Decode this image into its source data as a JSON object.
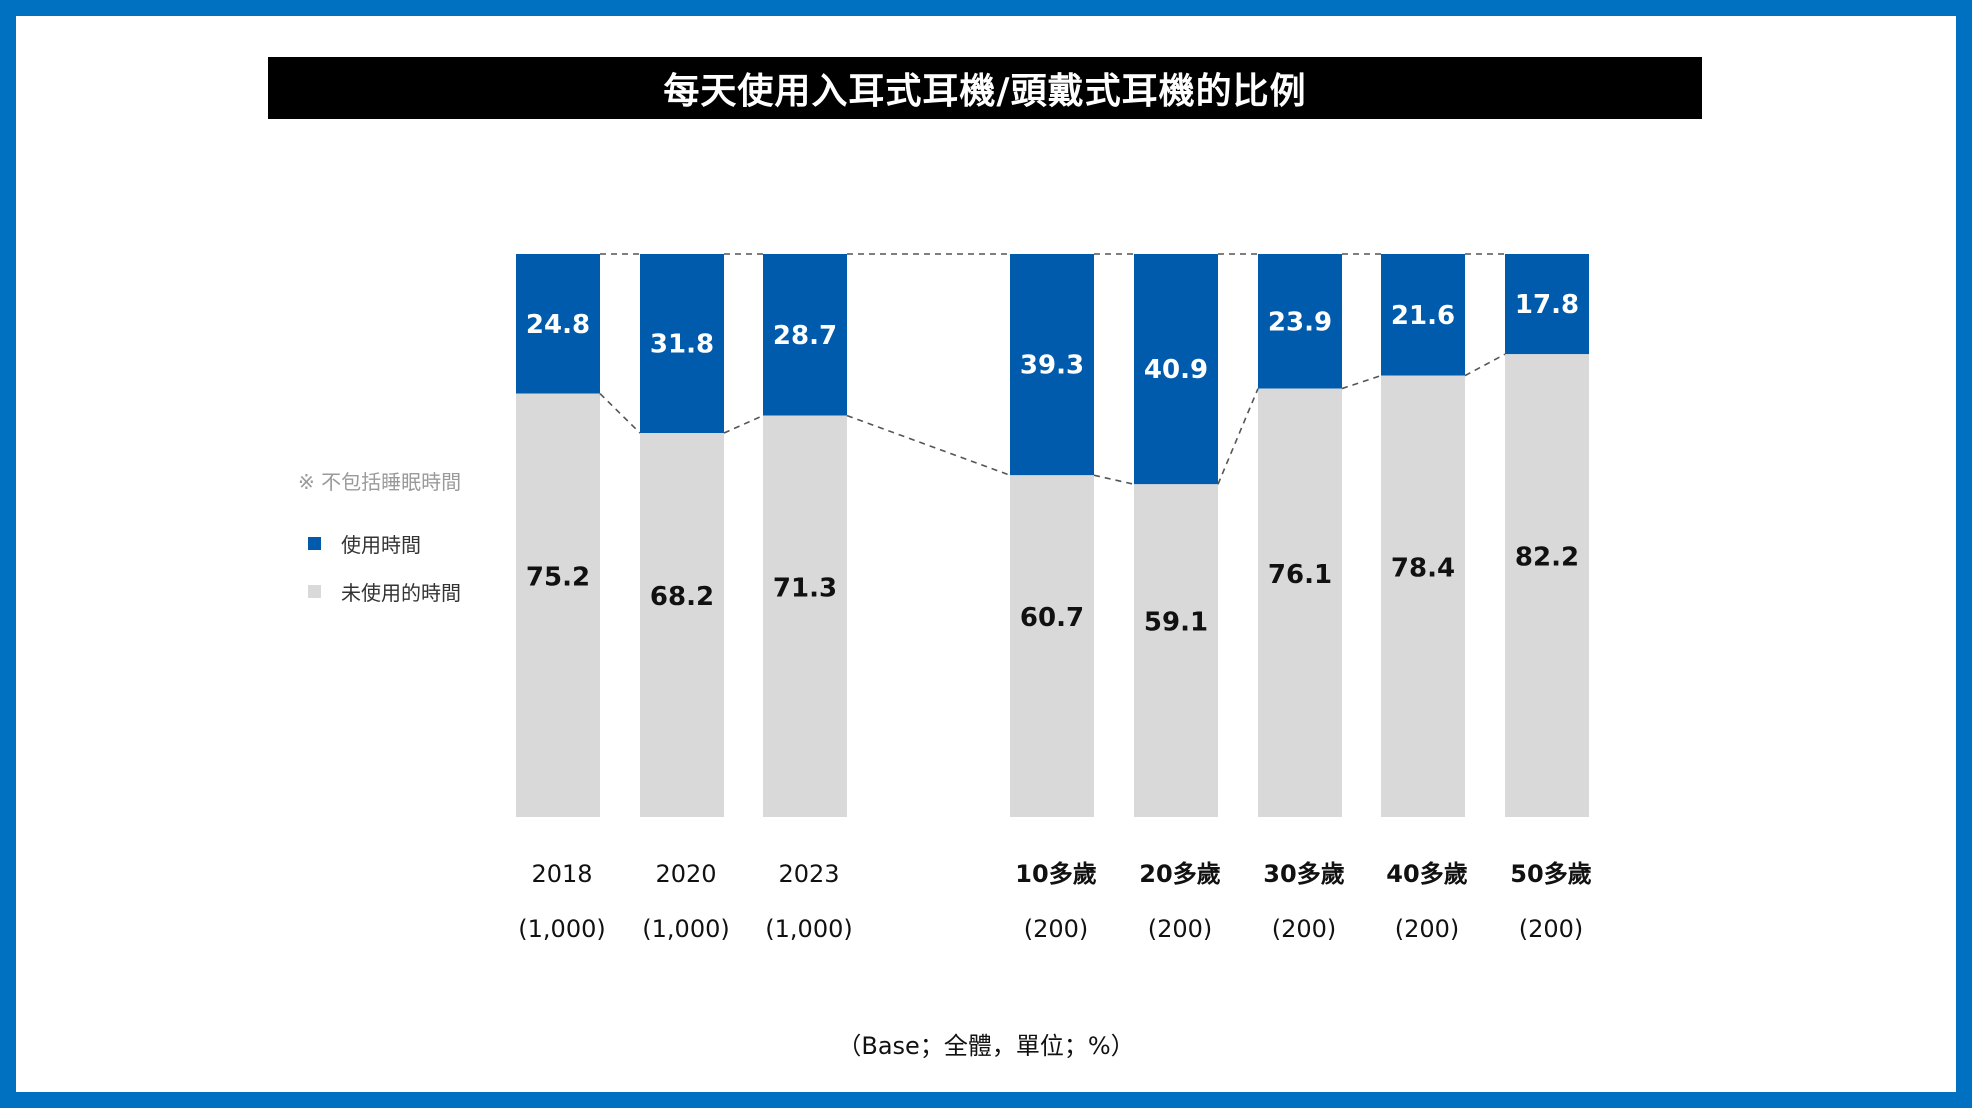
{
  "title": "每天使用入耳式耳機/頭戴式耳機的比例",
  "note": "※ 不包括睡眠時間",
  "legend": {
    "used": "使用時間",
    "unused": "未使用的時間"
  },
  "base_note": "（Base；全體，單位；%）",
  "colors": {
    "used": "#005bac",
    "unused": "#d9d9d9",
    "frame": "#0070c0"
  },
  "chart_data": {
    "type": "bar",
    "stacked": true,
    "percent_stacked": true,
    "ylim": [
      0,
      100
    ],
    "categories": [
      "2018",
      "2020",
      "2023",
      "10多歲",
      "20多歲",
      "30多歲",
      "40多歲",
      "50多歲"
    ],
    "sample_sizes": [
      "(1,000)",
      "(1,000)",
      "(1,000)",
      "(200)",
      "(200)",
      "(200)",
      "(200)",
      "(200)"
    ],
    "series": [
      {
        "name": "使用時間",
        "values": [
          24.8,
          31.8,
          28.7,
          39.3,
          40.9,
          23.9,
          21.6,
          17.8
        ]
      },
      {
        "name": "未使用的時間",
        "values": [
          75.2,
          68.2,
          71.3,
          60.7,
          59.1,
          76.1,
          78.4,
          82.2
        ]
      }
    ],
    "value_labels": {
      "used": [
        "24.8",
        "31.8",
        "28.7",
        "39.3",
        "40.9",
        "23.9",
        "21.6",
        "17.8"
      ],
      "unused": [
        "75.2",
        "68.2",
        "71.3",
        "60.7",
        "59.1",
        "76.1",
        "78.4",
        "82.2"
      ]
    },
    "bold_categories": [
      false,
      false,
      false,
      true,
      true,
      true,
      true,
      true
    ],
    "connector_lines": true,
    "legend_position": "left"
  }
}
